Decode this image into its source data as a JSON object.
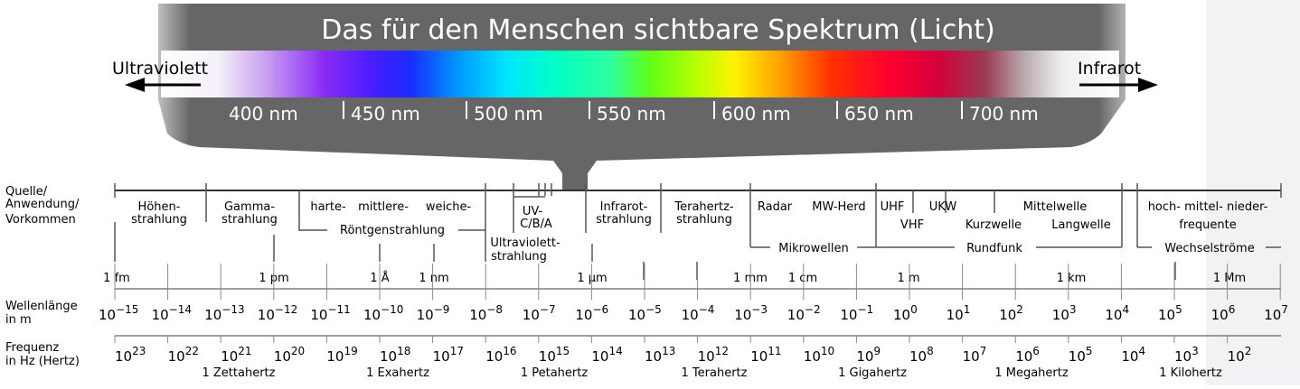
{
  "title": "Das für den Menschen sichtbare Spektrum (Licht)",
  "uv_label": "Ultraviolett",
  "ir_label": "Infrarot",
  "nm_ticks": [
    "400 nm",
    "450 nm",
    "500 nm",
    "550 nm",
    "600 nm",
    "650 nm",
    "700 nm"
  ],
  "row_labels": {
    "source": [
      "Quelle/",
      "Anwendung/",
      "Vorkommen"
    ],
    "wavelength": [
      "Wellenlänge",
      "in m"
    ],
    "frequency": [
      "Frequenz",
      "in Hz (Hertz)"
    ]
  },
  "sources": {
    "hoehen": [
      "Höhen-",
      "strahlung"
    ],
    "gamma": [
      "Gamma-",
      "strahlung"
    ],
    "harte": "harte-",
    "mittlere": "mittlere-",
    "weiche": "weiche-",
    "roentgen": "Röntgenstrahlung",
    "uvcba": [
      "UV-",
      "C/B/A"
    ],
    "ultraviolett": [
      "Ultraviolett-",
      "strahlung"
    ],
    "infrarot": [
      "Infrarot-",
      "strahlung"
    ],
    "terahertz": [
      "Terahertz-",
      "strahlung"
    ],
    "radar": "Radar",
    "mwherd": "MW-Herd",
    "mikrowellen": "Mikrowellen",
    "uhf": "UHF",
    "vhf": "VHF",
    "ukw": "UKW",
    "kurzwelle": "Kurzwelle",
    "mittelwelle": "Mittelwelle",
    "langwelle": "Langwelle",
    "rundfunk": "Rundfunk",
    "hochmittelnieder": "hoch- mittel- nieder-",
    "frequente": "frequente",
    "wechselstroeme": "Wechselströme"
  },
  "length_units": [
    "1 fm",
    "1 pm",
    "1 Å",
    "1 nm",
    "1 µm",
    "1 mm",
    "1 cm",
    "1 m",
    "1 km",
    "1 Mm"
  ],
  "wavelength_exponents": [
    "−15",
    "−14",
    "−13",
    "−12",
    "−11",
    "−10",
    "−9",
    "−8",
    "−7",
    "−6",
    "−5",
    "−4",
    "−3",
    "−2",
    "−1",
    "0",
    "1",
    "2",
    "3",
    "4",
    "5",
    "6",
    "7"
  ],
  "frequency_exponents": [
    "23",
    "22",
    "21",
    "20",
    "19",
    "18",
    "17",
    "16",
    "15",
    "14",
    "13",
    "12",
    "11",
    "10",
    "9",
    "8",
    "7",
    "6",
    "5",
    "4",
    "3",
    "2"
  ],
  "frequency_units": [
    "1 Zettahertz",
    "1 Exahertz",
    "1 Petahertz",
    "1 Terahertz",
    "1 Gigahertz",
    "1 Megahertz",
    "1 Kilohertz"
  ],
  "colors": {
    "band": "#666666",
    "text_white": "#ffffff",
    "line": "#666666",
    "text": "#000000"
  }
}
